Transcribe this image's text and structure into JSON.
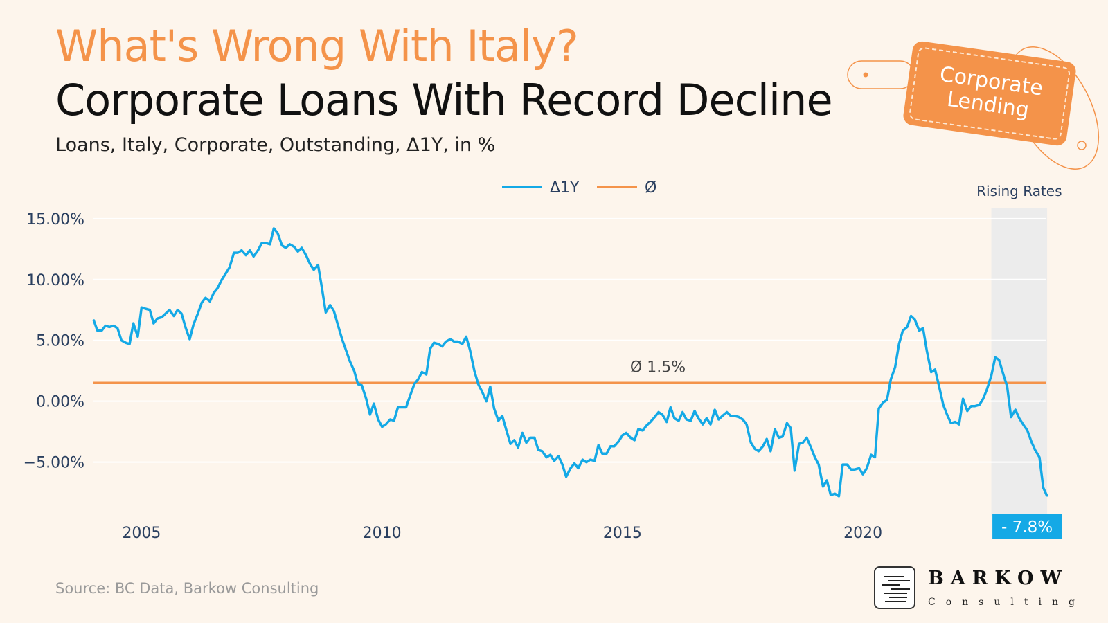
{
  "header": {
    "title": "What's Wrong With Italy?",
    "headline": "Corporate Loans With Record Decline",
    "subtitle": "Loans, Italy, Corporate, Outstanding, Δ1Y, in %"
  },
  "tag": {
    "label": "Corporate\nLending"
  },
  "footer": {
    "source": "Source: BC Data, Barkow Consulting"
  },
  "logo": {
    "name": "BARKOW",
    "sub": "Consulting"
  },
  "colors": {
    "accent": "#f4934a",
    "series": "#14a9e6",
    "background": "#fdf5ec",
    "shade": "#ececec",
    "text": "#2a3f5f"
  },
  "chart_data": {
    "type": "line",
    "title": "",
    "xlabel": "",
    "ylabel": "",
    "xlim": [
      2004.0,
      2023.8
    ],
    "ylim": [
      -9.4,
      15.9
    ],
    "y_ticks": [
      15,
      10,
      5,
      0,
      -5
    ],
    "y_tick_labels": [
      "15.00%",
      "10.00%",
      "5.00%",
      "0.00%",
      "−5.00%"
    ],
    "x_ticks": [
      2005,
      2010,
      2015,
      2020
    ],
    "x_tick_labels": [
      "2005",
      "2010",
      "2015",
      "2020"
    ],
    "legend": {
      "position": "top-center",
      "entries": [
        "Δ1Y",
        "Ø"
      ]
    },
    "grid": true,
    "series": [
      {
        "name": "Δ1Y",
        "color": "#14a9e6",
        "points": [
          [
            2004.0,
            6.7
          ],
          [
            2004.08,
            5.8
          ],
          [
            2004.17,
            5.8
          ],
          [
            2004.25,
            6.2
          ],
          [
            2004.33,
            6.1
          ],
          [
            2004.42,
            6.2
          ],
          [
            2004.5,
            6.0
          ],
          [
            2004.58,
            5.0
          ],
          [
            2004.67,
            4.8
          ],
          [
            2004.75,
            4.7
          ],
          [
            2004.83,
            6.4
          ],
          [
            2004.92,
            5.3
          ],
          [
            2005.0,
            7.7
          ],
          [
            2005.08,
            7.6
          ],
          [
            2005.17,
            7.5
          ],
          [
            2005.25,
            6.4
          ],
          [
            2005.33,
            6.8
          ],
          [
            2005.42,
            6.9
          ],
          [
            2005.5,
            7.2
          ],
          [
            2005.58,
            7.5
          ],
          [
            2005.67,
            7.0
          ],
          [
            2005.75,
            7.5
          ],
          [
            2005.83,
            7.2
          ],
          [
            2005.92,
            6.0
          ],
          [
            2006.0,
            5.1
          ],
          [
            2006.08,
            6.3
          ],
          [
            2006.17,
            7.2
          ],
          [
            2006.25,
            8.1
          ],
          [
            2006.33,
            8.5
          ],
          [
            2006.42,
            8.2
          ],
          [
            2006.5,
            8.9
          ],
          [
            2006.58,
            9.3
          ],
          [
            2006.67,
            10.0
          ],
          [
            2006.75,
            10.5
          ],
          [
            2006.83,
            11.0
          ],
          [
            2006.92,
            12.2
          ],
          [
            2007.0,
            12.2
          ],
          [
            2007.08,
            12.4
          ],
          [
            2007.17,
            12.0
          ],
          [
            2007.25,
            12.4
          ],
          [
            2007.33,
            11.9
          ],
          [
            2007.42,
            12.4
          ],
          [
            2007.5,
            13.0
          ],
          [
            2007.58,
            13.0
          ],
          [
            2007.67,
            12.9
          ],
          [
            2007.75,
            14.2
          ],
          [
            2007.83,
            13.8
          ],
          [
            2007.92,
            12.8
          ],
          [
            2008.0,
            12.6
          ],
          [
            2008.08,
            12.9
          ],
          [
            2008.17,
            12.7
          ],
          [
            2008.25,
            12.3
          ],
          [
            2008.33,
            12.6
          ],
          [
            2008.42,
            12.0
          ],
          [
            2008.5,
            11.3
          ],
          [
            2008.58,
            10.8
          ],
          [
            2008.67,
            11.2
          ],
          [
            2008.75,
            9.3
          ],
          [
            2008.83,
            7.3
          ],
          [
            2008.92,
            7.9
          ],
          [
            2009.0,
            7.4
          ],
          [
            2009.08,
            6.3
          ],
          [
            2009.17,
            5.1
          ],
          [
            2009.25,
            4.2
          ],
          [
            2009.33,
            3.3
          ],
          [
            2009.42,
            2.5
          ],
          [
            2009.5,
            1.4
          ],
          [
            2009.58,
            1.3
          ],
          [
            2009.67,
            0.2
          ],
          [
            2009.75,
            -1.1
          ],
          [
            2009.83,
            -0.2
          ],
          [
            2009.92,
            -1.5
          ],
          [
            2010.0,
            -2.1
          ],
          [
            2010.08,
            -1.9
          ],
          [
            2010.17,
            -1.5
          ],
          [
            2010.25,
            -1.6
          ],
          [
            2010.33,
            -0.5
          ],
          [
            2010.42,
            -0.5
          ],
          [
            2010.5,
            -0.5
          ],
          [
            2010.58,
            0.4
          ],
          [
            2010.67,
            1.4
          ],
          [
            2010.75,
            1.8
          ],
          [
            2010.83,
            2.4
          ],
          [
            2010.92,
            2.2
          ],
          [
            2011.0,
            4.3
          ],
          [
            2011.08,
            4.8
          ],
          [
            2011.17,
            4.7
          ],
          [
            2011.25,
            4.5
          ],
          [
            2011.33,
            4.9
          ],
          [
            2011.42,
            5.1
          ],
          [
            2011.5,
            4.9
          ],
          [
            2011.58,
            4.9
          ],
          [
            2011.67,
            4.7
          ],
          [
            2011.75,
            5.3
          ],
          [
            2011.83,
            4.2
          ],
          [
            2011.92,
            2.5
          ],
          [
            2012.0,
            1.4
          ],
          [
            2012.08,
            0.8
          ],
          [
            2012.17,
            0.0
          ],
          [
            2012.25,
            1.2
          ],
          [
            2012.33,
            -0.6
          ],
          [
            2012.42,
            -1.6
          ],
          [
            2012.5,
            -1.2
          ],
          [
            2012.58,
            -2.3
          ],
          [
            2012.67,
            -3.5
          ],
          [
            2012.75,
            -3.2
          ],
          [
            2012.83,
            -3.8
          ],
          [
            2012.92,
            -2.6
          ],
          [
            2013.0,
            -3.4
          ],
          [
            2013.08,
            -3.0
          ],
          [
            2013.17,
            -3.0
          ],
          [
            2013.25,
            -4.0
          ],
          [
            2013.33,
            -4.1
          ],
          [
            2013.42,
            -4.6
          ],
          [
            2013.5,
            -4.4
          ],
          [
            2013.58,
            -4.9
          ],
          [
            2013.67,
            -4.5
          ],
          [
            2013.75,
            -5.2
          ],
          [
            2013.83,
            -6.2
          ],
          [
            2013.92,
            -5.5
          ],
          [
            2014.0,
            -5.1
          ],
          [
            2014.08,
            -5.5
          ],
          [
            2014.17,
            -4.8
          ],
          [
            2014.25,
            -5.0
          ],
          [
            2014.33,
            -4.8
          ],
          [
            2014.42,
            -4.9
          ],
          [
            2014.5,
            -3.6
          ],
          [
            2014.58,
            -4.3
          ],
          [
            2014.67,
            -4.3
          ],
          [
            2014.75,
            -3.7
          ],
          [
            2014.83,
            -3.7
          ],
          [
            2014.92,
            -3.3
          ],
          [
            2015.0,
            -2.8
          ],
          [
            2015.08,
            -2.6
          ],
          [
            2015.17,
            -3.0
          ],
          [
            2015.25,
            -3.2
          ],
          [
            2015.33,
            -2.3
          ],
          [
            2015.42,
            -2.4
          ],
          [
            2015.5,
            -2.0
          ],
          [
            2015.58,
            -1.7
          ],
          [
            2015.67,
            -1.3
          ],
          [
            2015.75,
            -0.9
          ],
          [
            2015.83,
            -1.1
          ],
          [
            2015.92,
            -1.7
          ],
          [
            2016.0,
            -0.5
          ],
          [
            2016.08,
            -1.4
          ],
          [
            2016.17,
            -1.6
          ],
          [
            2016.25,
            -0.9
          ],
          [
            2016.33,
            -1.5
          ],
          [
            2016.42,
            -1.6
          ],
          [
            2016.5,
            -0.8
          ],
          [
            2016.58,
            -1.4
          ],
          [
            2016.67,
            -1.9
          ],
          [
            2016.75,
            -1.4
          ],
          [
            2016.83,
            -1.9
          ],
          [
            2016.92,
            -0.7
          ],
          [
            2017.0,
            -1.5
          ],
          [
            2017.08,
            -1.2
          ],
          [
            2017.17,
            -0.9
          ],
          [
            2017.25,
            -1.2
          ],
          [
            2017.33,
            -1.2
          ],
          [
            2017.42,
            -1.3
          ],
          [
            2017.5,
            -1.5
          ],
          [
            2017.58,
            -1.9
          ],
          [
            2017.67,
            -3.4
          ],
          [
            2017.75,
            -3.9
          ],
          [
            2017.83,
            -4.1
          ],
          [
            2017.92,
            -3.7
          ],
          [
            2018.0,
            -3.1
          ],
          [
            2018.08,
            -4.1
          ],
          [
            2018.17,
            -2.3
          ],
          [
            2018.25,
            -3.0
          ],
          [
            2018.33,
            -2.9
          ],
          [
            2018.42,
            -1.8
          ],
          [
            2018.5,
            -2.2
          ],
          [
            2018.58,
            -5.7
          ],
          [
            2018.67,
            -3.5
          ],
          [
            2018.75,
            -3.4
          ],
          [
            2018.83,
            -3.0
          ],
          [
            2018.92,
            -3.8
          ],
          [
            2019.0,
            -4.6
          ],
          [
            2019.08,
            -5.2
          ],
          [
            2019.17,
            -7.0
          ],
          [
            2019.25,
            -6.5
          ],
          [
            2019.33,
            -7.7
          ],
          [
            2019.42,
            -7.6
          ],
          [
            2019.5,
            -7.8
          ],
          [
            2019.58,
            -5.2
          ],
          [
            2019.67,
            -5.2
          ],
          [
            2019.75,
            -5.6
          ],
          [
            2019.83,
            -5.6
          ],
          [
            2019.92,
            -5.5
          ],
          [
            2020.0,
            -6.0
          ],
          [
            2020.08,
            -5.5
          ],
          [
            2020.17,
            -4.4
          ],
          [
            2020.25,
            -4.6
          ],
          [
            2020.33,
            -0.6
          ],
          [
            2020.42,
            -0.1
          ],
          [
            2020.5,
            0.1
          ],
          [
            2020.58,
            1.8
          ],
          [
            2020.67,
            2.8
          ],
          [
            2020.75,
            4.7
          ],
          [
            2020.83,
            5.8
          ],
          [
            2020.92,
            6.1
          ],
          [
            2021.0,
            7.0
          ],
          [
            2021.08,
            6.7
          ],
          [
            2021.17,
            5.8
          ],
          [
            2021.25,
            6.0
          ],
          [
            2021.33,
            4.1
          ],
          [
            2021.42,
            2.4
          ],
          [
            2021.5,
            2.6
          ],
          [
            2021.58,
            1.3
          ],
          [
            2021.67,
            -0.3
          ],
          [
            2021.75,
            -1.1
          ],
          [
            2021.83,
            -1.8
          ],
          [
            2021.92,
            -1.7
          ],
          [
            2022.0,
            -1.9
          ],
          [
            2022.08,
            0.2
          ],
          [
            2022.17,
            -0.8
          ],
          [
            2022.25,
            -0.4
          ],
          [
            2022.33,
            -0.4
          ],
          [
            2022.42,
            -0.3
          ],
          [
            2022.5,
            0.2
          ],
          [
            2022.58,
            1.0
          ],
          [
            2022.67,
            2.1
          ],
          [
            2022.75,
            3.6
          ],
          [
            2022.83,
            3.4
          ],
          [
            2022.92,
            2.2
          ],
          [
            2023.0,
            1.2
          ],
          [
            2023.08,
            -1.3
          ],
          [
            2023.17,
            -0.7
          ],
          [
            2023.25,
            -1.4
          ],
          [
            2023.33,
            -1.9
          ],
          [
            2023.42,
            -2.4
          ],
          [
            2023.5,
            -3.3
          ],
          [
            2023.58,
            -4.0
          ],
          [
            2023.67,
            -4.6
          ],
          [
            2023.75,
            -7.1
          ],
          [
            2023.83,
            -7.8
          ]
        ]
      },
      {
        "name": "Ø",
        "color": "#f4934a",
        "type": "hline",
        "value": 1.5,
        "label": "Ø 1.5%"
      }
    ],
    "shaded_region": {
      "x": [
        2022.67,
        2023.83
      ],
      "label": "Rising Rates"
    },
    "last_value_label": "- 7.8%"
  }
}
